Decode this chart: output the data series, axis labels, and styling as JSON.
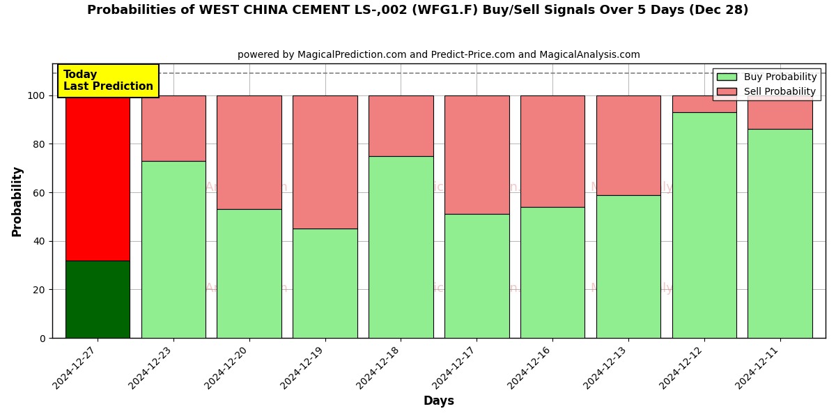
{
  "title": "Probabilities of WEST CHINA CEMENT LS-,002 (WFG1.F) Buy/Sell Signals Over 5 Days (Dec 28)",
  "subtitle": "powered by MagicalPrediction.com and Predict-Price.com and MagicalAnalysis.com",
  "xlabel": "Days",
  "ylabel": "Probability",
  "categories": [
    "2024-12-27",
    "2024-12-23",
    "2024-12-20",
    "2024-12-19",
    "2024-12-18",
    "2024-12-17",
    "2024-12-16",
    "2024-12-13",
    "2024-12-12",
    "2024-12-11"
  ],
  "buy_values": [
    32,
    73,
    53,
    45,
    75,
    51,
    54,
    59,
    93,
    86
  ],
  "sell_values": [
    68,
    27,
    47,
    55,
    25,
    49,
    46,
    41,
    7,
    14
  ],
  "buy_color_normal": "#90EE90",
  "sell_color_normal": "#F08080",
  "buy_color_today": "#006400",
  "sell_color_today": "#FF0000",
  "bar_edge_color": "#000000",
  "ylim": [
    0,
    113
  ],
  "yticks": [
    0,
    20,
    40,
    60,
    80,
    100
  ],
  "dashed_line_y": 109,
  "annotation_text": "Today\nLast Prediction",
  "annotation_bg": "#FFFF00",
  "legend_buy_label": "Buy Probability",
  "legend_sell_label": "Sell Probability",
  "background_color": "#FFFFFF",
  "grid_color": "#AAAAAA"
}
